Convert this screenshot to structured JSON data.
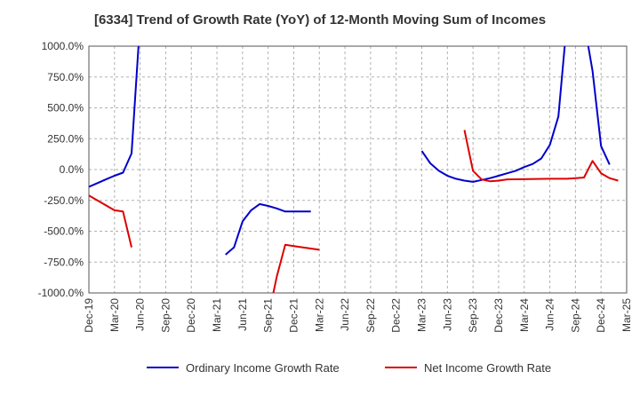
{
  "chart_data": {
    "type": "line",
    "title": "[6334]  Trend of Growth Rate (YoY) of 12-Month Moving Sum of Incomes",
    "xlabel": "",
    "ylabel": "",
    "y_tick_labels": [
      "1000.0%",
      "750.0%",
      "500.0%",
      "250.0%",
      "0.0%",
      "-250.0%",
      "-500.0%",
      "-750.0%",
      "-1000.0%"
    ],
    "y_tick_values": [
      1000,
      750,
      500,
      250,
      0,
      -250,
      -500,
      -750,
      -1000
    ],
    "ylim": [
      -1000,
      1000
    ],
    "x_tick_labels": [
      "Dec-19",
      "Mar-20",
      "Jun-20",
      "Sep-20",
      "Dec-20",
      "Mar-21",
      "Jun-21",
      "Sep-21",
      "Dec-21",
      "Mar-22",
      "Jun-22",
      "Sep-22",
      "Dec-22",
      "Mar-23",
      "Jun-23",
      "Sep-23",
      "Dec-23",
      "Mar-24",
      "Jun-24",
      "Sep-24",
      "Dec-24",
      "Mar-25"
    ],
    "x_range_months": [
      "Dec-19",
      "Mar-25"
    ],
    "grid": true,
    "grid_style": "dashed",
    "legend_position": "bottom",
    "series": [
      {
        "name": "Ordinary Income Growth Rate",
        "color": "#0000cc",
        "points": [
          [
            "Dec-19",
            -140
          ],
          [
            "Jan-20",
            -110
          ],
          [
            "Feb-20",
            -80
          ],
          [
            "Mar-20",
            -50
          ],
          [
            "Apr-20",
            -25
          ],
          [
            "May-20",
            130
          ],
          [
            "Jun-20",
            1200
          ],
          null,
          [
            "Apr-21",
            -690
          ],
          [
            "May-21",
            -630
          ],
          [
            "Jun-21",
            -420
          ],
          [
            "Jul-21",
            -330
          ],
          [
            "Aug-21",
            -280
          ],
          [
            "Sep-21",
            -295
          ],
          [
            "Oct-21",
            -315
          ],
          [
            "Nov-21",
            -340
          ],
          [
            "Dec-21",
            -340
          ],
          [
            "Jan-22",
            -340
          ],
          [
            "Feb-22",
            -340
          ],
          null,
          [
            "Mar-23",
            150
          ],
          [
            "Apr-23",
            50
          ],
          [
            "May-23",
            -10
          ],
          [
            "Jun-23",
            -50
          ],
          [
            "Jul-23",
            -75
          ],
          [
            "Aug-23",
            -90
          ],
          [
            "Sep-23",
            -100
          ],
          [
            "Oct-23",
            -85
          ],
          [
            "Nov-23",
            -70
          ],
          [
            "Dec-23",
            -50
          ],
          [
            "Jan-24",
            -30
          ],
          [
            "Feb-24",
            -10
          ],
          [
            "Mar-24",
            20
          ],
          [
            "Apr-24",
            45
          ],
          [
            "May-24",
            90
          ],
          [
            "Jun-24",
            200
          ],
          [
            "Jul-24",
            430
          ],
          [
            "Aug-24",
            1200
          ],
          null,
          [
            "Oct-24",
            1200
          ],
          [
            "Nov-24",
            800
          ],
          [
            "Dec-24",
            190
          ],
          [
            "Jan-25",
            40
          ]
        ]
      },
      {
        "name": "Net Income Growth Rate",
        "color": "#dd0000",
        "points": [
          [
            "Dec-19",
            -210
          ],
          [
            "Mar-20",
            -330
          ],
          [
            "Apr-20",
            -340
          ],
          [
            "May-20",
            -630
          ],
          null,
          [
            "Sep-21",
            -1200
          ],
          [
            "Oct-21",
            -870
          ],
          [
            "Nov-21",
            -610
          ],
          [
            "Dec-21",
            -620
          ],
          [
            "Jan-22",
            -630
          ],
          [
            "Feb-22",
            -640
          ],
          [
            "Mar-22",
            -650
          ],
          null,
          [
            "Aug-23",
            320
          ],
          [
            "Sep-23",
            -10
          ],
          [
            "Oct-23",
            -80
          ],
          [
            "Nov-23",
            -95
          ],
          [
            "Dec-23",
            -90
          ],
          [
            "Jan-24",
            -80
          ],
          [
            "Jun-24",
            -75
          ],
          [
            "Jul-24",
            -75
          ],
          [
            "Aug-24",
            -75
          ],
          [
            "Sep-24",
            -70
          ],
          [
            "Oct-24",
            -65
          ],
          [
            "Nov-24",
            70
          ],
          [
            "Dec-24",
            -30
          ],
          [
            "Jan-25",
            -70
          ],
          [
            "Feb-25",
            -90
          ]
        ]
      }
    ]
  }
}
